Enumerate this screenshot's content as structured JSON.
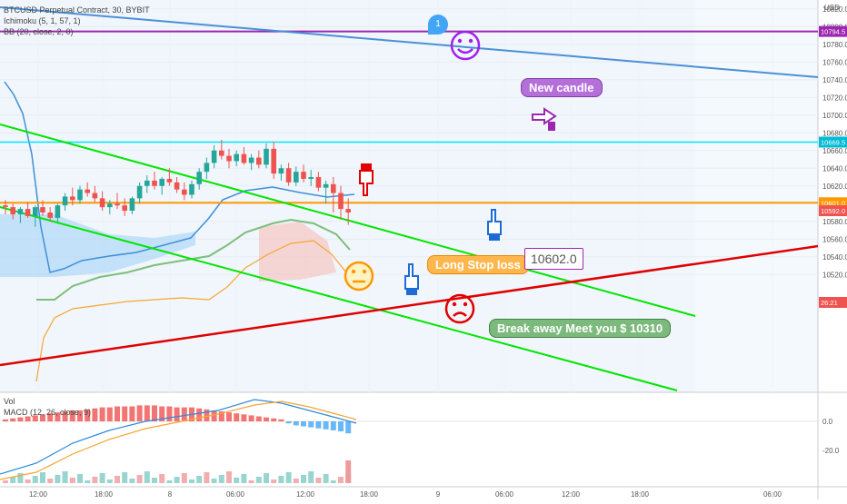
{
  "legend": {
    "symbol_line": "BTCUSD Perpetual Contract, 30, BYBIT",
    "ichimoku": "Ichimoku (5, 1, 57, 1)",
    "bb": "BB (20, close, 2, 0)"
  },
  "pane_labels": {
    "vol": "Vol",
    "macd": "MACD (12, 26, close, 9)"
  },
  "annotations": {
    "flag_number": "1",
    "new_candle": "New candle",
    "long_stop": "Long Stop loss",
    "price_box": "10602.0",
    "break_away": "Break away Meet you $ 10310"
  },
  "price_axis": {
    "currency": "USD",
    "ticks": [
      "10820.0",
      "10800.0",
      "10780.0",
      "10760.0",
      "10740.0",
      "10720.0",
      "10700.0",
      "10680.0",
      "10660.0",
      "10640.0",
      "10620.0",
      "10600.0",
      "10580.0",
      "10560.0",
      "10540.0",
      "10520.0"
    ],
    "labels": [
      {
        "text": "10794.5",
        "price": 10794.5,
        "color": "#9c27b0"
      },
      {
        "text": "10669.5",
        "price": 10669.5,
        "color": "#00bcd4"
      },
      {
        "text": "10601.0",
        "price": 10601.0,
        "color": "#ff9800"
      },
      {
        "text": "10592.0",
        "price": 10592.0,
        "color": "#ef5350"
      },
      {
        "text": "26:21",
        "price": 10582.0,
        "color": "#ef5350"
      }
    ]
  },
  "macd_axis": {
    "ticks": [
      "0.0",
      "-20.0"
    ]
  },
  "time_axis": {
    "labels": [
      "12:00",
      "18:00",
      "8",
      "06:00",
      "12:00",
      "18:00",
      "9",
      "06:00",
      "12:00",
      "18:00",
      "06:00"
    ]
  },
  "colors": {
    "up": "#26a69a",
    "down": "#ef5350",
    "blue_trend": "#4a90d9",
    "purple": "#9c27b0",
    "cyan": "#00e5ff",
    "orange": "#ff9800",
    "green_channel": "#00e600",
    "red_trend": "#e00000"
  },
  "chart_data": {
    "type": "candlestick",
    "symbol": "BTCUSD Perpetual Contract",
    "interval": "30",
    "exchange": "BYBIT",
    "ylim": [
      10510,
      10830
    ],
    "horizontal_levels": [
      10794.5,
      10669.5,
      10601.0
    ],
    "candles": [
      [
        10598,
        10604,
        10588,
        10596
      ],
      [
        10596,
        10600,
        10582,
        10588
      ],
      [
        10588,
        10596,
        10578,
        10594
      ],
      [
        10594,
        10602,
        10584,
        10586
      ],
      [
        10586,
        10598,
        10574,
        10596
      ],
      [
        10596,
        10604,
        10586,
        10590
      ],
      [
        10590,
        10596,
        10580,
        10584
      ],
      [
        10584,
        10600,
        10578,
        10598
      ],
      [
        10598,
        10612,
        10592,
        10608
      ],
      [
        10608,
        10618,
        10598,
        10604
      ],
      [
        10604,
        10620,
        10600,
        10616
      ],
      [
        10616,
        10624,
        10608,
        10612
      ],
      [
        10612,
        10620,
        10602,
        10606
      ],
      [
        10606,
        10614,
        10592,
        10596
      ],
      [
        10596,
        10604,
        10588,
        10600
      ],
      [
        10600,
        10612,
        10594,
        10598
      ],
      [
        10598,
        10606,
        10586,
        10592
      ],
      [
        10592,
        10608,
        10588,
        10606
      ],
      [
        10606,
        10624,
        10600,
        10620
      ],
      [
        10620,
        10632,
        10612,
        10626
      ],
      [
        10626,
        10636,
        10616,
        10620
      ],
      [
        10620,
        10630,
        10610,
        10628
      ],
      [
        10628,
        10640,
        10620,
        10624
      ],
      [
        10624,
        10630,
        10612,
        10616
      ],
      [
        10616,
        10624,
        10604,
        10610
      ],
      [
        10610,
        10626,
        10606,
        10622
      ],
      [
        10622,
        10640,
        10616,
        10636
      ],
      [
        10636,
        10652,
        10628,
        10646
      ],
      [
        10646,
        10666,
        10640,
        10660
      ],
      [
        10660,
        10672,
        10650,
        10654
      ],
      [
        10654,
        10662,
        10640,
        10648
      ],
      [
        10648,
        10660,
        10642,
        10656
      ],
      [
        10656,
        10664,
        10644,
        10646
      ],
      [
        10646,
        10656,
        10638,
        10652
      ],
      [
        10652,
        10660,
        10640,
        10644
      ],
      [
        10644,
        10668,
        10640,
        10662
      ],
      [
        10662,
        10670,
        10628,
        10634
      ],
      [
        10634,
        10644,
        10626,
        10640
      ],
      [
        10640,
        10646,
        10620,
        10624
      ],
      [
        10624,
        10642,
        10620,
        10636
      ],
      [
        10636,
        10644,
        10624,
        10628
      ],
      [
        10628,
        10638,
        10620,
        10630
      ],
      [
        10630,
        10636,
        10614,
        10618
      ],
      [
        10618,
        10626,
        10600,
        10622
      ],
      [
        10622,
        10630,
        10590,
        10612
      ],
      [
        10612,
        10620,
        10582,
        10594
      ],
      [
        10594,
        10606,
        10576,
        10590
      ]
    ]
  }
}
